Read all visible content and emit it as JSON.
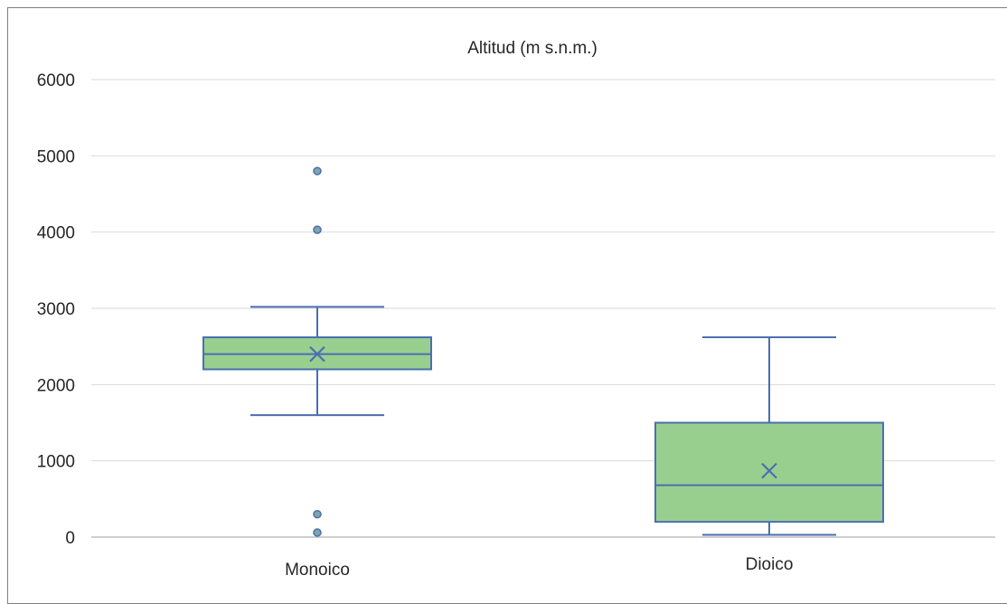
{
  "chart_data": {
    "type": "box",
    "title": "Altitud (m s.n.m.)",
    "xlabel": "",
    "ylabel": "",
    "ylim": [
      0,
      6000
    ],
    "yticks": [
      0,
      1000,
      2000,
      3000,
      4000,
      5000,
      6000
    ],
    "grid": true,
    "legend": "none",
    "colors": {
      "box_fill": "#99cf8e",
      "box_stroke": "#4a6fb0",
      "outlier_fill": "#7fa6a8",
      "outlier_stroke": "#4a6fb0",
      "gridline": "#d9d9d9",
      "axis": "#bfbfbf"
    },
    "categories": [
      "Monoico",
      "Dioico"
    ],
    "boxes": [
      {
        "category": "Monoico",
        "whisker_low": 1600,
        "q1": 2200,
        "median": 2400,
        "q3": 2620,
        "whisker_high": 3020,
        "mean": 2400,
        "outliers": [
          4800,
          4030,
          300,
          60
        ]
      },
      {
        "category": "Dioico",
        "whisker_low": 30,
        "q1": 200,
        "median": 680,
        "q3": 1500,
        "whisker_high": 2620,
        "mean": 870,
        "outliers": []
      }
    ]
  }
}
